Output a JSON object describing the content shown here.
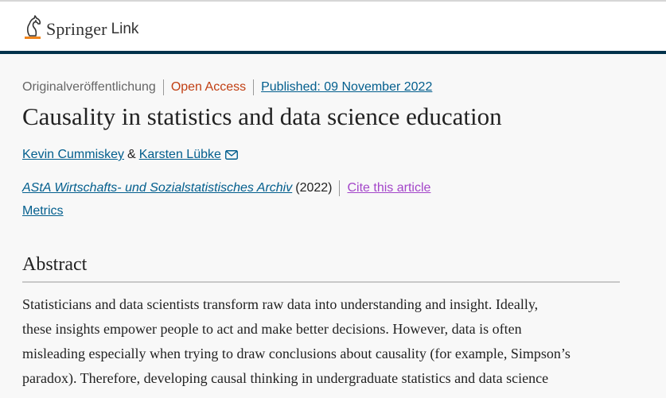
{
  "header": {
    "brand": "Springer",
    "brand_suffix": "Link",
    "logo_icon": "springer-horse-icon"
  },
  "article": {
    "type": "Originalveröffentlichung",
    "access": "Open Access",
    "published": "Published: 09 November 2022",
    "title": "Causality in statistics and data science education",
    "authors": [
      "Kevin Cummiskey",
      "Karsten Lübke"
    ],
    "author_separator": "&",
    "journal": "AStA Wirtschafts- und Sozialstatistisches Archiv",
    "year": "(2022)",
    "cite": "Cite this article",
    "metrics": "Metrics"
  },
  "abstract": {
    "heading": "Abstract",
    "lines": [
      "Statisticians and data scientists transform raw data into understanding and insight. Ideally,",
      "these insights empower people to act and make better decisions. However, data is often",
      "misleading especially when trying to draw conclusions about causality (for example, Simpson’s",
      "paradox). Therefore, developing causal thinking in undergraduate statistics and data science"
    ]
  },
  "colors": {
    "header_bar": "#01324b",
    "link": "#025e8d",
    "open_access": "#c13f13",
    "cite_link": "#a345c9",
    "logo_accent": "#f0841b"
  }
}
